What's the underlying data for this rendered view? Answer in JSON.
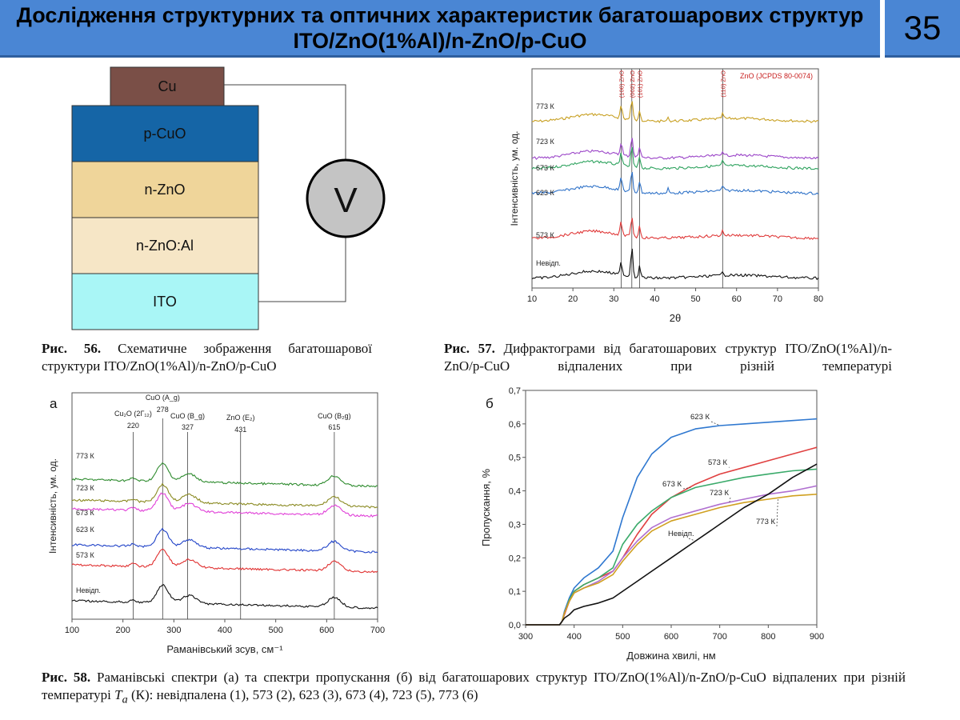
{
  "header": {
    "title": "Дослідження структурних та оптичних характеристик багатошарових структур ITO/ZnO(1%Al)/n-ZnO/p-CuO",
    "page_number": "35"
  },
  "schematic": {
    "layers": [
      "Cu",
      "p-CuO",
      "n-ZnO",
      "n-ZnO:Al",
      "ITO"
    ],
    "meter_label": "V",
    "colors": {
      "cu": "#7a4f47",
      "pcuo": "#1565a6",
      "nzno": "#efd59a",
      "nznoal": "#f6e6c6",
      "ito": "#a9f6f6"
    }
  },
  "captions": {
    "fig56": {
      "label": "Рис. 56.",
      "text": " Схематичне зображення багатошарової структури ITO/ZnO(1%Al)/n-ZnO/p-CuO"
    },
    "fig57": {
      "label": "Рис. 57.",
      "text": " Дифрактограми від багатошарових структур ITO/ZnO(1%Al)/n-ZnO/p-CuO відпалених при різній температурі"
    },
    "fig58": {
      "label": "Рис. 58.",
      "text_a": " Раманівські спектри (а) та спектри пропускання (б) від багатошарових структур ITO/ZnO(1%Al)/n-ZnO/p-CuO відпалених при різній температурі ",
      "ta_T": "T",
      "ta_sub": "a",
      "text_b": " (К): невідпалена (1), 573 (2), 623 (3), 673 (4), 723 (5), 773 (6)"
    }
  },
  "chart_data": [
    {
      "type": "line",
      "id": "xrd",
      "xlabel": "2θ",
      "ylabel": "Інтенсивність, ум. од.",
      "xlim": [
        10,
        80
      ],
      "xticks": [
        "10",
        "20",
        "30",
        "40",
        "50",
        "60",
        "70",
        "80"
      ],
      "reference_label": "ZnO (JCPDS 80-0074)",
      "reference_lines": [
        {
          "x": 31.8,
          "label": "(100) ZnO"
        },
        {
          "x": 34.4,
          "label": "(002) ZnO"
        },
        {
          "x": 36.3,
          "label": "(101) ZnO"
        },
        {
          "x": 56.6,
          "label": "(110) ZnO"
        }
      ],
      "series": [
        {
          "name": "773 К",
          "color": "#c8a022"
        },
        {
          "name": "723 К",
          "color": "#9b45c8"
        },
        {
          "name": "673 К",
          "color": "#2fa35f"
        },
        {
          "name": "623 К",
          "color": "#2f72c8"
        },
        {
          "name": "573 К",
          "color": "#e03a3a"
        },
        {
          "name": "Невідп.",
          "color": "#111111"
        }
      ]
    },
    {
      "type": "line",
      "id": "raman",
      "panel_label": "а",
      "xlabel": "Раманівський зсув, см⁻¹",
      "ylabel": "Інтенсивність, ум. од.",
      "xlim": [
        100,
        700
      ],
      "xticks": [
        "100",
        "200",
        "300",
        "400",
        "500",
        "600",
        "700"
      ],
      "reference_lines": [
        {
          "x": 220,
          "label": "Cu₂O (2Г₁₂)",
          "value": "220"
        },
        {
          "x": 278,
          "label": "CuO (A_g)",
          "value": "278"
        },
        {
          "x": 327,
          "label": "CuO (B_g)",
          "value": "327"
        },
        {
          "x": 431,
          "label": "ZnO (E₂)",
          "value": "431"
        },
        {
          "x": 615,
          "label": "CuO (B₂g)",
          "value": "615"
        }
      ],
      "series": [
        {
          "name": "773 К",
          "color": "#2e8b2e"
        },
        {
          "name": "723 К",
          "color": "#8a8a22"
        },
        {
          "name": "673 К",
          "color": "#e040d8"
        },
        {
          "name": "623 К",
          "color": "#2244c8"
        },
        {
          "name": "573 К",
          "color": "#e03030"
        },
        {
          "name": "Невідп.",
          "color": "#111111"
        }
      ]
    },
    {
      "type": "line",
      "id": "transmission",
      "panel_label": "б",
      "xlabel": "Довжина хвилі, нм",
      "ylabel": "Пропускання, %",
      "xlim": [
        300,
        900
      ],
      "ylim": [
        0,
        0.7
      ],
      "xticks": [
        "300",
        "400",
        "500",
        "600",
        "700",
        "800",
        "900"
      ],
      "yticks": [
        "0,0",
        "0,1",
        "0,2",
        "0,3",
        "0,4",
        "0,5",
        "0,6",
        "0,7"
      ],
      "series": [
        {
          "name": "623 К",
          "color": "#2f78d0",
          "x": [
            300,
            370,
            375,
            380,
            390,
            400,
            420,
            450,
            480,
            500,
            530,
            560,
            600,
            650,
            700,
            750,
            800,
            850,
            900
          ],
          "y": [
            0,
            0,
            0.01,
            0.04,
            0.08,
            0.11,
            0.14,
            0.17,
            0.22,
            0.32,
            0.44,
            0.51,
            0.56,
            0.585,
            0.595,
            0.6,
            0.605,
            0.61,
            0.615
          ]
        },
        {
          "name": "573 К",
          "color": "#e04040",
          "x": [
            300,
            370,
            375,
            380,
            390,
            400,
            420,
            450,
            480,
            500,
            530,
            560,
            600,
            650,
            700,
            750,
            800,
            850,
            900
          ],
          "y": [
            0,
            0,
            0.01,
            0.03,
            0.07,
            0.1,
            0.12,
            0.14,
            0.16,
            0.2,
            0.27,
            0.33,
            0.38,
            0.42,
            0.45,
            0.47,
            0.49,
            0.51,
            0.53
          ]
        },
        {
          "name": "673 К",
          "color": "#3aaa6a",
          "x": [
            300,
            370,
            375,
            380,
            390,
            400,
            420,
            450,
            480,
            500,
            530,
            560,
            600,
            650,
            700,
            750,
            800,
            850,
            900
          ],
          "y": [
            0,
            0,
            0.01,
            0.035,
            0.075,
            0.1,
            0.12,
            0.14,
            0.17,
            0.24,
            0.3,
            0.34,
            0.38,
            0.41,
            0.425,
            0.44,
            0.45,
            0.46,
            0.465
          ]
        },
        {
          "name": "723 К",
          "color": "#b070d0",
          "x": [
            300,
            370,
            375,
            380,
            390,
            400,
            420,
            450,
            480,
            500,
            530,
            560,
            600,
            650,
            700,
            750,
            800,
            850,
            900
          ],
          "y": [
            0,
            0,
            0.01,
            0.035,
            0.07,
            0.095,
            0.11,
            0.13,
            0.16,
            0.2,
            0.25,
            0.29,
            0.32,
            0.34,
            0.36,
            0.375,
            0.39,
            0.4,
            0.415
          ]
        },
        {
          "name": "773 К",
          "color": "#d0a020",
          "x": [
            300,
            370,
            375,
            380,
            390,
            400,
            420,
            450,
            480,
            500,
            530,
            560,
            600,
            650,
            700,
            750,
            800,
            850,
            900
          ],
          "y": [
            0,
            0,
            0.01,
            0.035,
            0.07,
            0.095,
            0.11,
            0.125,
            0.15,
            0.19,
            0.24,
            0.28,
            0.31,
            0.33,
            0.35,
            0.365,
            0.375,
            0.385,
            0.39
          ]
        },
        {
          "name": "Невідп.",
          "color": "#111111",
          "x": [
            300,
            370,
            375,
            380,
            390,
            400,
            420,
            450,
            480,
            500,
            530,
            560,
            600,
            650,
            700,
            750,
            800,
            850,
            900
          ],
          "y": [
            0,
            0,
            0.01,
            0.02,
            0.03,
            0.045,
            0.055,
            0.065,
            0.08,
            0.1,
            0.13,
            0.16,
            0.2,
            0.25,
            0.3,
            0.35,
            0.39,
            0.44,
            0.48
          ]
        }
      ]
    }
  ]
}
